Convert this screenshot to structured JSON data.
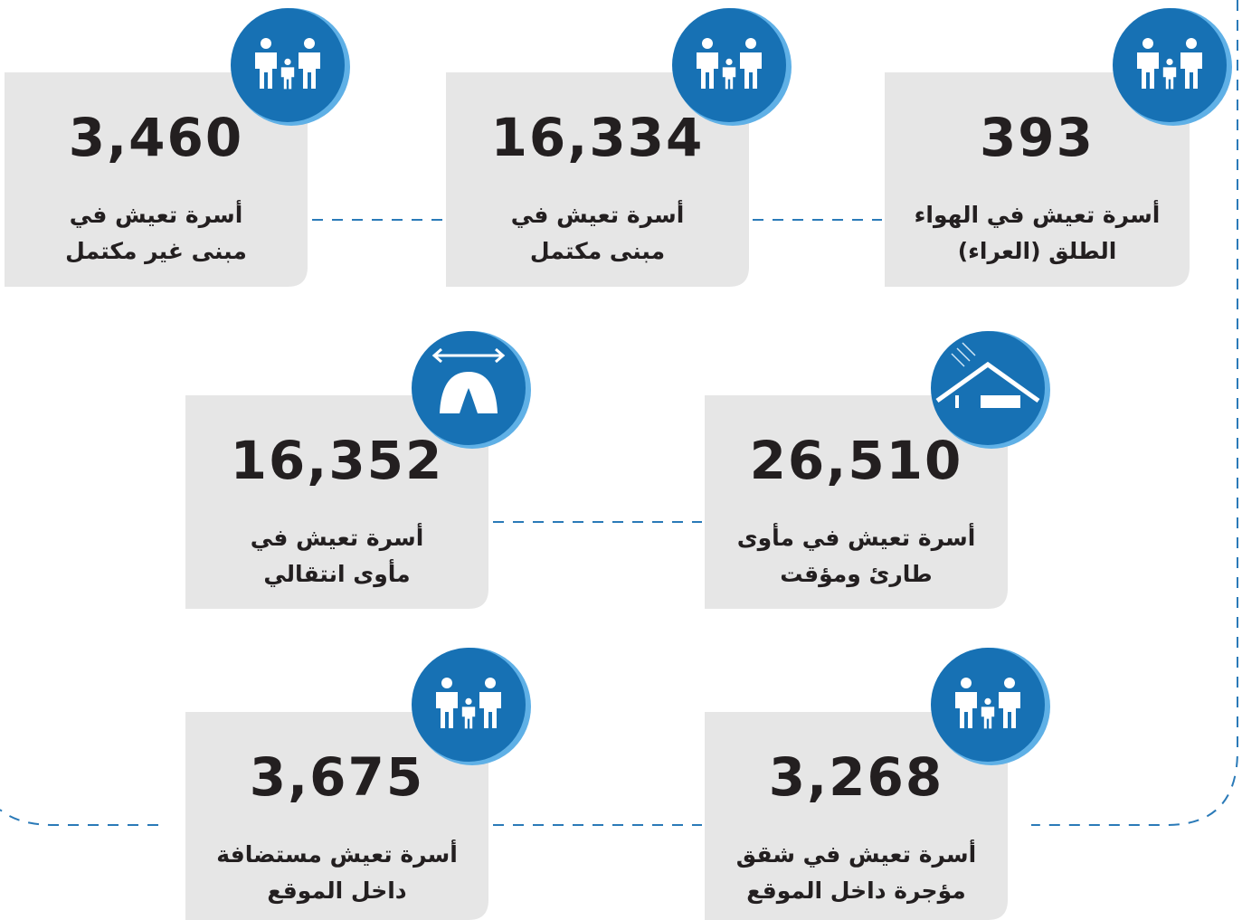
{
  "cards": [
    {
      "number": "3,460",
      "lines": [
        "أسرة تعيش في",
        "مبنى غير مكتمل"
      ]
    },
    {
      "number": "16,334",
      "lines": [
        "أسرة تعيش في",
        "مبنى مكتمل"
      ]
    },
    {
      "number": "393",
      "lines": [
        "أسرة تعيش في الهواء",
        "الطلق (العراء)"
      ]
    },
    {
      "number": "16,352",
      "lines": [
        "أسرة تعيش في",
        "مأوى انتقالي"
      ]
    },
    {
      "number": "26,510",
      "lines": [
        "أسرة تعيش في مأوى",
        "طارئ ومؤقت"
      ]
    },
    {
      "number": "3,675",
      "lines": [
        "أسرة تعيش مستضافة",
        "داخل الموقع"
      ]
    },
    {
      "number": "3,268",
      "lines": [
        "أسرة تعيش في شقق",
        "مؤجرة داخل الموقع"
      ]
    }
  ]
}
